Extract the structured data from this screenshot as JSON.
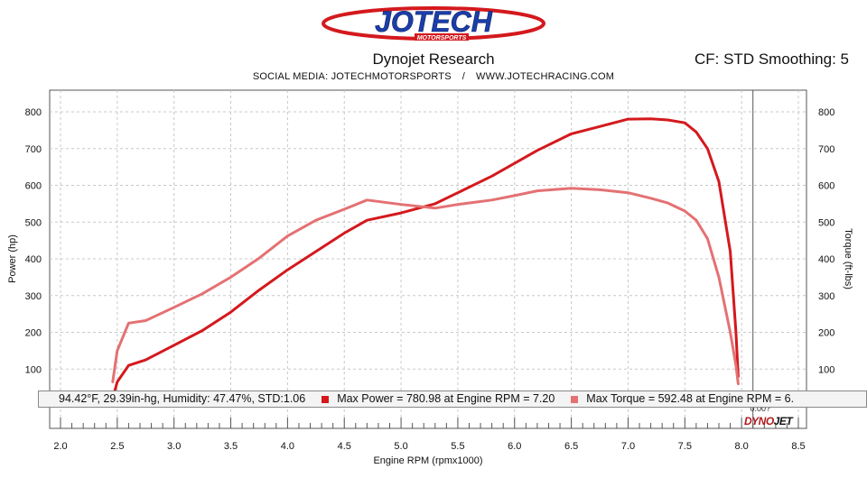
{
  "header": {
    "brand": "JOTECH",
    "brand_sub": "MOTORSPORTS",
    "title": "Dynojet Research",
    "cf": "CF: STD Smoothing: 5",
    "social": "SOCIAL MEDIA: JOTECHMOTORSPORTS",
    "social_sep": "/",
    "website": "WWW.JOTECHRACING.COM"
  },
  "info": {
    "conditions": "94.42°F, 29.39in-hg, Humidity: 47.47%, STD:1.06",
    "max_power": "Max Power = 780.98 at Engine RPM = 7.20",
    "max_torque": "Max Torque = 592.48 at Engine RPM = 6."
  },
  "footer_logo": {
    "a": "DYNO",
    "b": "JET"
  },
  "colors": {
    "power": "#d4191d",
    "torque": "#e47173",
    "grid": "#c8c8c8"
  },
  "chart_data": {
    "type": "line",
    "xlabel": "Engine RPM (rpmx1000)",
    "ylabel_left": "Power (hp)",
    "ylabel_right": "Torque (ft-lbs)",
    "xlim": [
      1.95,
      8.5
    ],
    "ylim": [
      0,
      860
    ],
    "x_ticks": [
      2.0,
      2.5,
      3.0,
      3.5,
      4.0,
      4.5,
      5.0,
      5.5,
      6.0,
      6.5,
      7.0,
      7.5,
      8.0,
      8.5
    ],
    "y_ticks": [
      100,
      200,
      300,
      400,
      500,
      600,
      700,
      800
    ],
    "cursor_rpm": 8.1,
    "cursor_readout": "0.00?",
    "grid": true,
    "series": [
      {
        "name": "Power",
        "x": [
          2.46,
          2.5,
          2.6,
          2.75,
          3.0,
          3.25,
          3.5,
          3.75,
          4.0,
          4.25,
          4.5,
          4.7,
          5.0,
          5.3,
          5.5,
          5.8,
          6.0,
          6.2,
          6.5,
          6.75,
          7.0,
          7.2,
          7.35,
          7.5,
          7.6,
          7.7,
          7.8,
          7.9,
          7.95,
          7.97
        ],
        "values": [
          20,
          65,
          110,
          125,
          165,
          205,
          255,
          315,
          370,
          420,
          470,
          505,
          525,
          550,
          580,
          625,
          660,
          695,
          740,
          760,
          780,
          781,
          778,
          770,
          745,
          700,
          610,
          420,
          200,
          80
        ]
      },
      {
        "name": "Torque",
        "x": [
          2.46,
          2.5,
          2.6,
          2.75,
          3.0,
          3.25,
          3.5,
          3.75,
          4.0,
          4.25,
          4.5,
          4.7,
          5.0,
          5.3,
          5.5,
          5.8,
          6.0,
          6.2,
          6.5,
          6.75,
          7.0,
          7.2,
          7.35,
          7.5,
          7.6,
          7.7,
          7.8,
          7.9,
          7.95,
          7.97
        ],
        "values": [
          65,
          150,
          225,
          232,
          268,
          305,
          350,
          402,
          462,
          505,
          535,
          560,
          548,
          538,
          548,
          560,
          572,
          585,
          592,
          588,
          580,
          565,
          552,
          530,
          505,
          455,
          350,
          200,
          110,
          60
        ]
      }
    ]
  }
}
